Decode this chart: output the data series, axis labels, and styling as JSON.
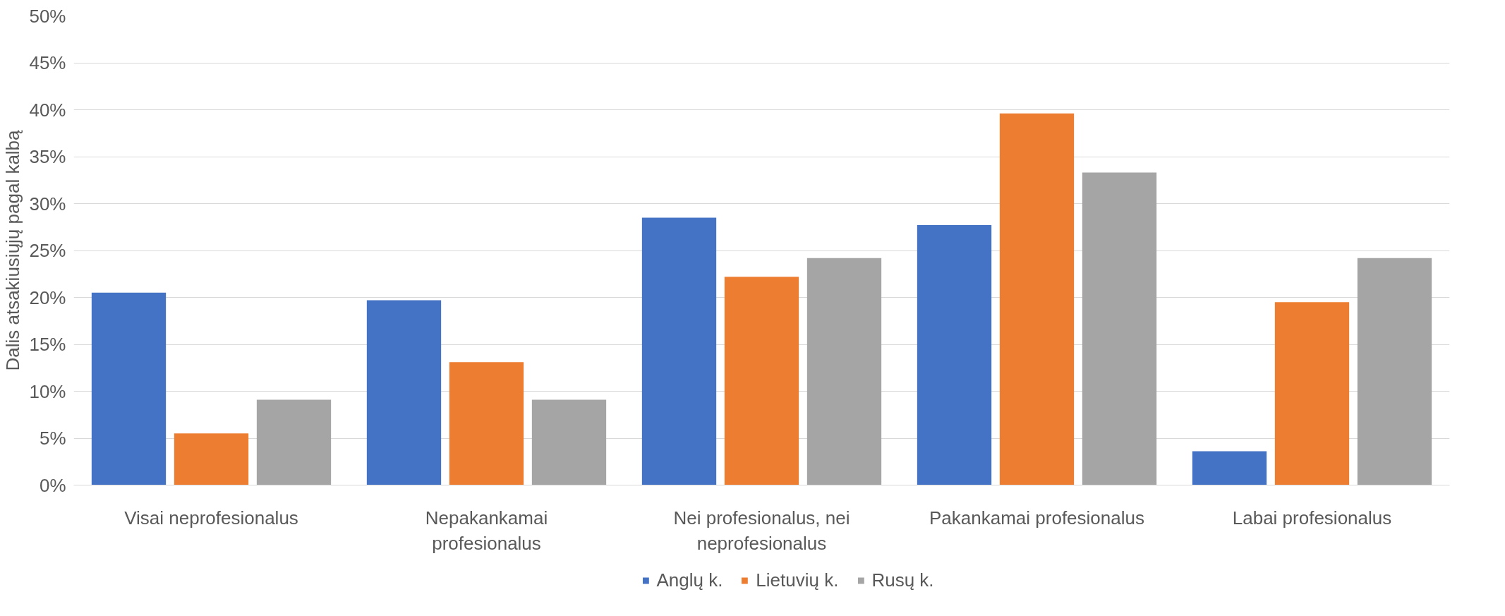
{
  "chart_data": {
    "type": "bar",
    "ylabel": "Dalis atsakiusiųjų pagal kalbą",
    "categories": [
      "Visai neprofesionalus",
      "Nepakankamai profesionalus",
      "Nei profesionalus, nei neprofesionalus",
      "Pakankamai profesionalus",
      "Labai profesionalus"
    ],
    "series": [
      {
        "name": "Anglų k.",
        "color": "#4472c4",
        "values": [
          20.5,
          19.7,
          28.5,
          27.7,
          3.6
        ]
      },
      {
        "name": "Lietuvių k.",
        "color": "#ed7d31",
        "values": [
          5.5,
          13.1,
          22.2,
          39.6,
          19.5
        ]
      },
      {
        "name": "Rusų k.",
        "color": "#a5a5a5",
        "values": [
          9.1,
          9.1,
          24.2,
          33.3,
          24.2
        ]
      }
    ],
    "ylim": [
      0,
      50
    ],
    "yticks": [
      {
        "value": 0,
        "label": "0%"
      },
      {
        "value": 5,
        "label": "5%"
      },
      {
        "value": 10,
        "label": "10%"
      },
      {
        "value": 15,
        "label": "15%"
      },
      {
        "value": 20,
        "label": "20%"
      },
      {
        "value": 25,
        "label": "25%"
      },
      {
        "value": 30,
        "label": "30%"
      },
      {
        "value": 35,
        "label": "35%"
      },
      {
        "value": 40,
        "label": "40%"
      },
      {
        "value": 45,
        "label": "45%"
      },
      {
        "value": 50,
        "label": "50%"
      }
    ],
    "grid": "y",
    "legend": "bottom"
  }
}
